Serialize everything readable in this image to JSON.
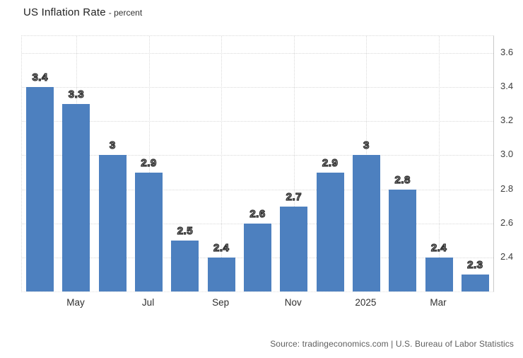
{
  "title": {
    "main": "US Inflation Rate",
    "subtitle": "- percent"
  },
  "footer": {
    "source": "Source: tradingeconomics.com | U.S. Bureau of Labor Statistics"
  },
  "chart_data": {
    "type": "bar",
    "title": "US Inflation Rate",
    "unit": "percent",
    "values": [
      3.4,
      3.3,
      3,
      2.9,
      2.5,
      2.4,
      2.6,
      2.7,
      2.9,
      3,
      2.8,
      2.4,
      2.3
    ],
    "bar_labels": [
      "3.4",
      "3.3",
      "3",
      "2.9",
      "2.5",
      "2.4",
      "2.6",
      "2.7",
      "2.9",
      "3",
      "2.8",
      "2.4",
      "2.3"
    ],
    "x_tick_labels": [
      "May",
      "Jul",
      "Sep",
      "Nov",
      "2025",
      "Mar"
    ],
    "x_tick_bar_indexes": [
      1,
      3,
      5,
      7,
      9,
      11
    ],
    "y_ticks": [
      3.6,
      3.4,
      3.2,
      3.0,
      2.8,
      2.6,
      2.4
    ],
    "y_tick_labels": [
      "3.6",
      "3.4",
      "3.2",
      "3.0",
      "2.8",
      "2.6",
      "2.4"
    ],
    "ylim": [
      2.2,
      3.7
    ],
    "grid": "dotted horizontal and vertical at labeled ticks",
    "legend_position": "none",
    "y_axis_side": "right",
    "bar_color": "#4d80bf"
  }
}
